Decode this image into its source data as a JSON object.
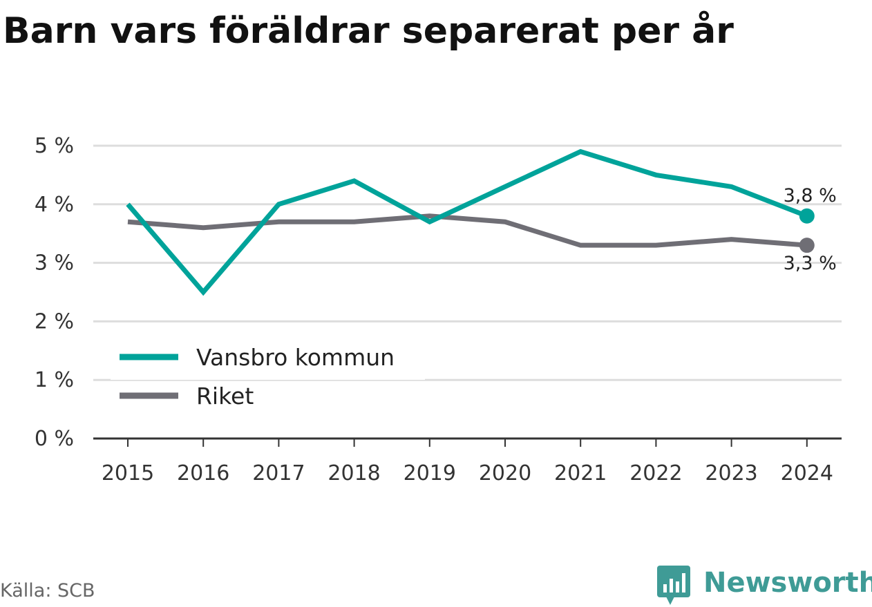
{
  "title": "Barn vars föräldrar separerat per år",
  "source": "Källa: SCB",
  "brand": "Newsworthy",
  "colors": {
    "vansbro": "#00a39a",
    "riket": "#6f6e75",
    "grid": "#dddddd",
    "axis": "#333333",
    "brand": "#3f9b96"
  },
  "chart_data": {
    "type": "line",
    "title": "Barn vars föräldrar separerat per år",
    "x": [
      "2015",
      "2016",
      "2017",
      "2018",
      "2019",
      "2020",
      "2021",
      "2022",
      "2023",
      "2024"
    ],
    "y_ticks": [
      "0 %",
      "1 %",
      "2 %",
      "3 %",
      "4 %",
      "5 %"
    ],
    "ylim": [
      0,
      5
    ],
    "grid": true,
    "legend_position": "bottom-left",
    "series": [
      {
        "name": "Vansbro kommun",
        "key": "vansbro",
        "values": [
          4.0,
          2.5,
          4.0,
          4.4,
          3.7,
          4.3,
          4.9,
          4.5,
          4.3,
          3.8
        ],
        "end_label": "3,8 %"
      },
      {
        "name": "Riket",
        "key": "riket",
        "values": [
          3.7,
          3.6,
          3.7,
          3.7,
          3.8,
          3.7,
          3.3,
          3.3,
          3.4,
          3.3
        ],
        "end_label": "3,3 %"
      }
    ]
  }
}
